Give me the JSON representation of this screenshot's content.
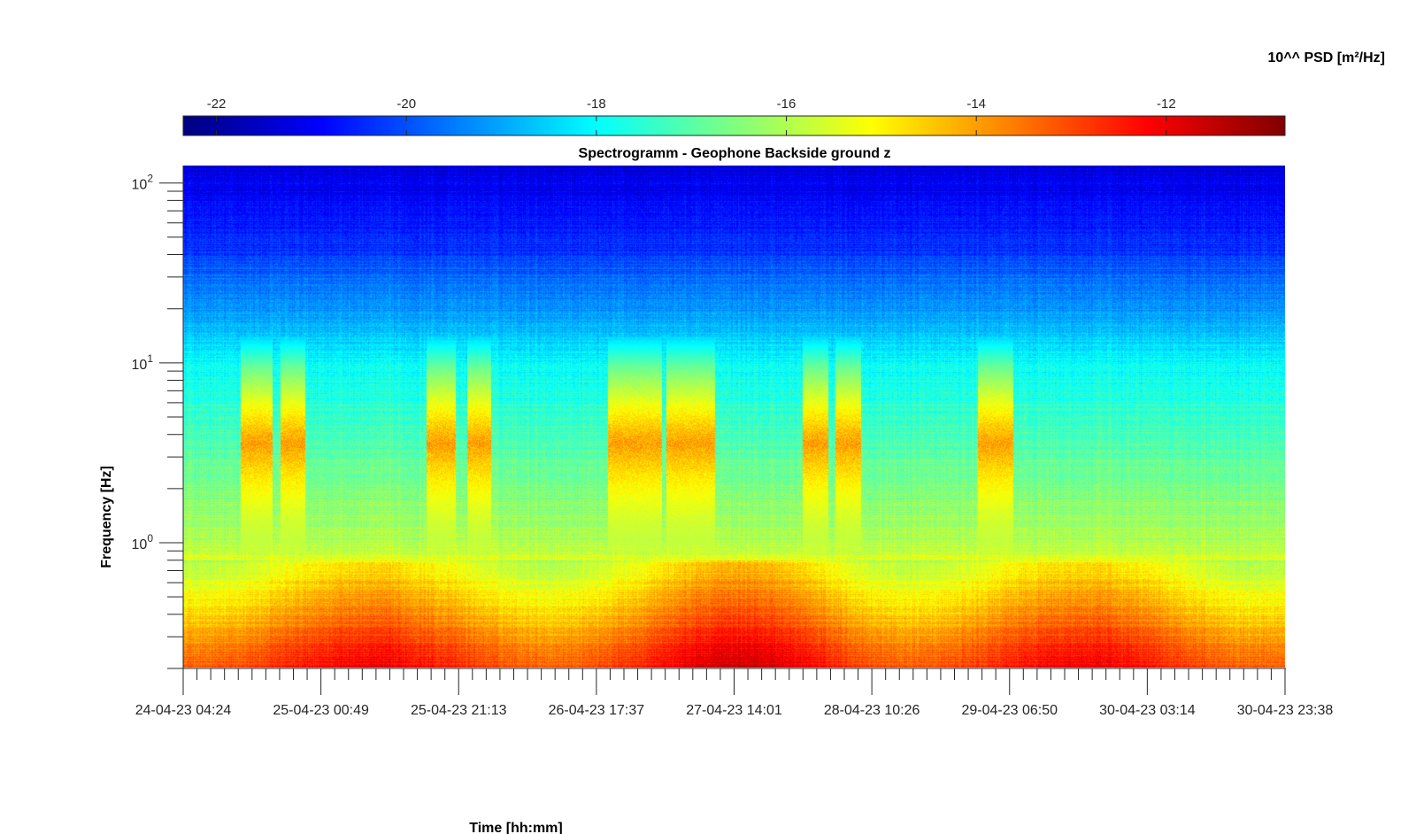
{
  "chart_data": {
    "type": "heatmap",
    "title": "Spectrogramm - Geophone Backside ground z",
    "xlabel": "Time [hh:mm]",
    "ylabel": "Frequency [Hz]",
    "colorbar_label": "10^^ PSD [m²/Hz]",
    "colormap": "jet",
    "colormap_colors": [
      "#00008f",
      "#0000ff",
      "#00ffff",
      "#ffff00",
      "#ff0000",
      "#800000"
    ],
    "colorbar_ticks": [
      "-22",
      "-20",
      "-18",
      "-16",
      "-14",
      "-12"
    ],
    "colorbar_range": [
      -22.35,
      -10.75
    ],
    "x_tick_labels": [
      "24-04-23 04:24",
      "25-04-23 00:49",
      "25-04-23 21:13",
      "26-04-23 17:37",
      "27-04-23 14:01",
      "28-04-23 10:26",
      "29-04-23 06:50",
      "30-04-23 03:14",
      "30-04-23 23:38"
    ],
    "y_scale": "log",
    "y_range_hz": [
      0.2,
      125
    ],
    "y_tick_labels": [
      {
        "base": "10",
        "exp": "0"
      },
      {
        "base": "10",
        "exp": "1"
      },
      {
        "base": "10",
        "exp": "2"
      }
    ],
    "y_tick_values_hz": [
      1,
      10,
      100
    ],
    "activity_bursts": [
      {
        "start_day": 0.35,
        "end_day": 0.55,
        "log10_psd": -14
      },
      {
        "start_day": 0.6,
        "end_day": 0.75,
        "log10_psd": -14
      },
      {
        "start_day": 1.5,
        "end_day": 1.68,
        "log10_psd": -14
      },
      {
        "start_day": 1.75,
        "end_day": 1.9,
        "log10_psd": -14
      },
      {
        "start_day": 2.62,
        "end_day": 2.95,
        "log10_psd": -14
      },
      {
        "start_day": 2.98,
        "end_day": 3.28,
        "log10_psd": -14
      },
      {
        "start_day": 3.82,
        "end_day": 3.98,
        "log10_psd": -14
      },
      {
        "start_day": 4.02,
        "end_day": 4.18,
        "log10_psd": -14
      },
      {
        "start_day": 4.9,
        "end_day": 5.12,
        "log10_psd": -14
      }
    ],
    "grid": false
  }
}
